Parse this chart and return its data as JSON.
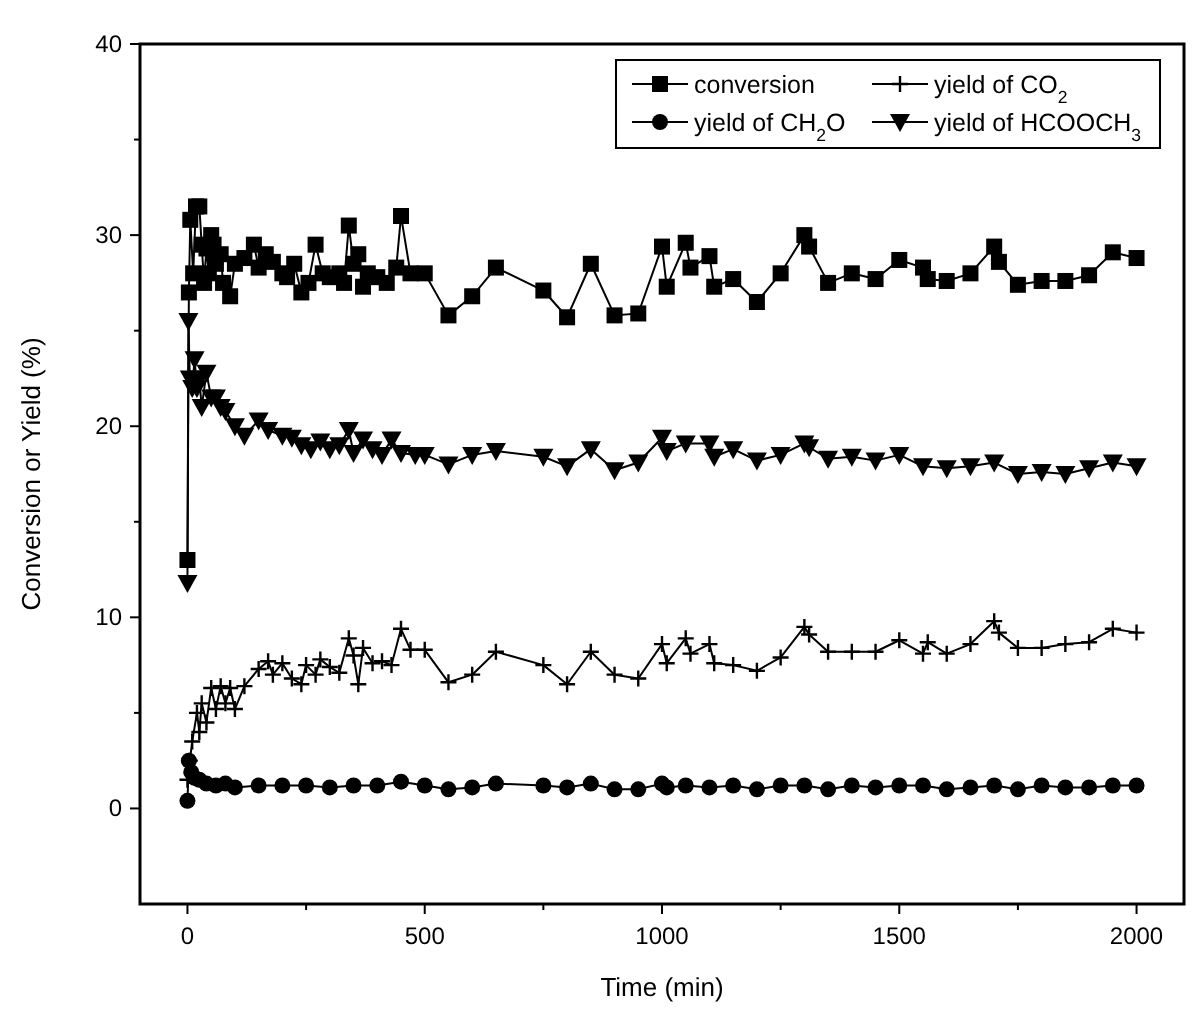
{
  "chart_data": {
    "type": "line",
    "xlabel": "Time (min)",
    "ylabel": "Conversion or Yield (%)",
    "xlim": [
      -100,
      2100
    ],
    "ylim": [
      -5,
      40
    ],
    "xticks": [
      0,
      {
        "value": 250,
        "label": null
      },
      500,
      {
        "value": 750,
        "label": null
      },
      1000,
      {
        "value": 1250,
        "label": null
      },
      1500,
      {
        "value": 1750,
        "label": null
      },
      2000
    ],
    "yticks": [
      0,
      {
        "value": 5,
        "label": null
      },
      10,
      {
        "value": 15,
        "label": null
      },
      20,
      {
        "value": 25,
        "label": null
      },
      30,
      {
        "value": 35,
        "label": null
      },
      40
    ],
    "legend": "top right",
    "grid": false,
    "series": [
      {
        "name": "conversion",
        "color": "#000000",
        "marker": "square",
        "x": [
          0,
          3,
          6,
          12,
          18,
          25,
          30,
          35,
          40,
          45,
          50,
          55,
          60,
          70,
          75,
          90,
          100,
          120,
          140,
          150,
          165,
          180,
          200,
          210,
          225,
          240,
          255,
          270,
          285,
          300,
          320,
          330,
          340,
          350,
          360,
          370,
          380,
          400,
          420,
          440,
          450,
          470,
          500,
          550,
          600,
          650,
          750,
          800,
          850,
          900,
          950,
          1000,
          1010,
          1050,
          1060,
          1100,
          1110,
          1150,
          1200,
          1250,
          1300,
          1310,
          1350,
          1400,
          1450,
          1500,
          1550,
          1560,
          1600,
          1650,
          1700,
          1710,
          1750,
          1800,
          1850,
          1900,
          1950,
          2000
        ],
        "values": [
          13.0,
          27.0,
          30.8,
          28.0,
          31.5,
          31.5,
          29.5,
          27.5,
          29.3,
          28.0,
          30.0,
          29.5,
          28.5,
          29.0,
          27.5,
          26.8,
          28.5,
          28.8,
          29.5,
          28.3,
          29.0,
          28.6,
          28.0,
          27.8,
          28.5,
          27.0,
          27.5,
          29.5,
          28.0,
          27.8,
          28.0,
          27.5,
          30.5,
          28.5,
          29.0,
          27.3,
          28.0,
          27.8,
          27.5,
          28.3,
          31.0,
          28.0,
          28.0,
          25.8,
          26.8,
          28.3,
          27.1,
          25.7,
          28.5,
          25.8,
          25.9,
          29.4,
          27.3,
          29.6,
          28.3,
          28.9,
          27.3,
          27.7,
          26.5,
          28.0,
          30.0,
          29.4,
          27.5,
          28.0,
          27.7,
          28.7,
          28.3,
          27.7,
          27.6,
          28.0,
          29.4,
          28.6,
          27.4,
          27.6,
          27.6,
          27.9,
          29.1,
          28.8
        ]
      },
      {
        "name": "yield of CO$_{2}$",
        "color": "#000000",
        "marker": "cross",
        "x": [
          0,
          5,
          10,
          20,
          25,
          30,
          40,
          50,
          60,
          70,
          80,
          90,
          100,
          120,
          150,
          170,
          180,
          200,
          220,
          240,
          250,
          270,
          280,
          300,
          320,
          340,
          350,
          360,
          370,
          390,
          410,
          430,
          450,
          470,
          500,
          550,
          600,
          650,
          750,
          800,
          850,
          900,
          950,
          1000,
          1010,
          1050,
          1060,
          1100,
          1110,
          1150,
          1200,
          1250,
          1300,
          1310,
          1350,
          1400,
          1450,
          1500,
          1550,
          1560,
          1600,
          1650,
          1700,
          1710,
          1750,
          1800,
          1850,
          1900,
          1950,
          2000
        ],
        "values": [
          1.5,
          2.5,
          3.5,
          5.0,
          4.0,
          5.5,
          4.5,
          6.3,
          5.2,
          6.4,
          5.5,
          6.3,
          5.2,
          6.4,
          7.3,
          7.7,
          7.0,
          7.6,
          6.8,
          6.5,
          7.5,
          7.0,
          7.8,
          7.4,
          7.1,
          8.9,
          8.0,
          6.5,
          8.4,
          7.6,
          7.7,
          7.5,
          9.4,
          8.3,
          8.3,
          6.6,
          7.0,
          8.2,
          7.5,
          6.5,
          8.2,
          7.0,
          6.8,
          8.6,
          7.6,
          8.9,
          8.1,
          8.6,
          7.6,
          7.5,
          7.2,
          7.9,
          9.5,
          9.1,
          8.2,
          8.2,
          8.2,
          8.8,
          8.1,
          8.7,
          8.1,
          8.6,
          9.8,
          9.2,
          8.4,
          8.4,
          8.6,
          8.7,
          9.4,
          9.2
        ]
      },
      {
        "name": "yield of CH$_{2}$O",
        "color": "#000000",
        "marker": "circle",
        "x": [
          0,
          3,
          8,
          15,
          25,
          40,
          60,
          80,
          100,
          150,
          200,
          250,
          300,
          350,
          400,
          450,
          500,
          550,
          600,
          650,
          750,
          800,
          850,
          900,
          950,
          1000,
          1010,
          1050,
          1100,
          1150,
          1200,
          1250,
          1300,
          1350,
          1400,
          1450,
          1500,
          1550,
          1600,
          1650,
          1700,
          1750,
          1800,
          1850,
          1900,
          1950,
          2000
        ],
        "values": [
          0.4,
          2.5,
          1.9,
          1.6,
          1.5,
          1.3,
          1.2,
          1.3,
          1.1,
          1.2,
          1.2,
          1.2,
          1.1,
          1.2,
          1.2,
          1.4,
          1.2,
          1.0,
          1.1,
          1.3,
          1.2,
          1.1,
          1.3,
          1.0,
          1.0,
          1.3,
          1.1,
          1.2,
          1.1,
          1.2,
          1.0,
          1.2,
          1.2,
          1.0,
          1.2,
          1.1,
          1.2,
          1.2,
          1.0,
          1.1,
          1.2,
          1.0,
          1.2,
          1.1,
          1.1,
          1.2,
          1.2
        ]
      },
      {
        "name": "yield of HCOOCH$_{3}$",
        "color": "#000000",
        "marker": "triangle-down",
        "x": [
          0,
          2,
          5,
          10,
          15,
          20,
          25,
          30,
          40,
          50,
          60,
          70,
          80,
          100,
          120,
          150,
          170,
          200,
          220,
          240,
          260,
          280,
          300,
          320,
          340,
          350,
          370,
          390,
          410,
          430,
          450,
          480,
          500,
          550,
          600,
          650,
          750,
          800,
          850,
          900,
          950,
          1000,
          1010,
          1050,
          1100,
          1110,
          1150,
          1200,
          1250,
          1300,
          1310,
          1350,
          1400,
          1450,
          1500,
          1550,
          1600,
          1650,
          1700,
          1750,
          1800,
          1850,
          1900,
          1950,
          2000
        ],
        "values": [
          11.8,
          25.5,
          22.5,
          22.0,
          23.5,
          22.0,
          22.5,
          21.0,
          22.8,
          21.5,
          21.5,
          21.0,
          20.8,
          20.0,
          19.5,
          20.3,
          19.8,
          19.5,
          19.4,
          19.0,
          18.8,
          19.2,
          18.8,
          19.0,
          19.8,
          18.6,
          19.3,
          18.8,
          18.5,
          19.3,
          18.6,
          18.5,
          18.5,
          18.0,
          18.5,
          18.7,
          18.4,
          17.9,
          18.8,
          17.7,
          18.1,
          19.4,
          18.7,
          19.1,
          19.1,
          18.4,
          18.8,
          18.2,
          18.5,
          19.1,
          18.9,
          18.3,
          18.4,
          18.2,
          18.5,
          17.9,
          17.8,
          17.9,
          18.1,
          17.5,
          17.6,
          17.5,
          17.8,
          18.1,
          17.9
        ]
      }
    ]
  }
}
